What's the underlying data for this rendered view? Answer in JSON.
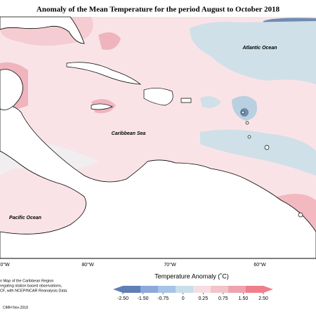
{
  "map": {
    "title": "Anomaly of the Mean Temperature for the period August to October 2018",
    "labels": {
      "atlantic": "Atlantic Ocean",
      "caribbean": "Caribbean Sea",
      "pacific": "Pacific Ocean"
    },
    "longitudes": [
      "0°W",
      "80°W",
      "70°W",
      "60°W"
    ],
    "colorbar": {
      "title": "Temperature Anomaly (˚C)",
      "ticks": [
        {
          "value": -2.5,
          "label": "-2.50"
        },
        {
          "value": -1.5,
          "label": "-1.50"
        },
        -0.75,
        0,
        0.25,
        0.75,
        {
          "value": 1.5,
          "label": "1.50"
        },
        {
          "value": 2.5,
          "label": "2.50"
        }
      ],
      "colors": [
        "#5f7fb5",
        "#8ea8dc",
        "#a7c3e7",
        "#c8dee9",
        "#f6dde2",
        "#f2c3ca",
        "#eea3ae",
        "#ef7f8b"
      ]
    },
    "footnote": [
      "n Map of the Caribbean Region",
      "regating station based observations,",
      "CF, with NCEP/NCAR Reanalysis Data.",
      "CIMH Nov-2018"
    ]
  }
}
